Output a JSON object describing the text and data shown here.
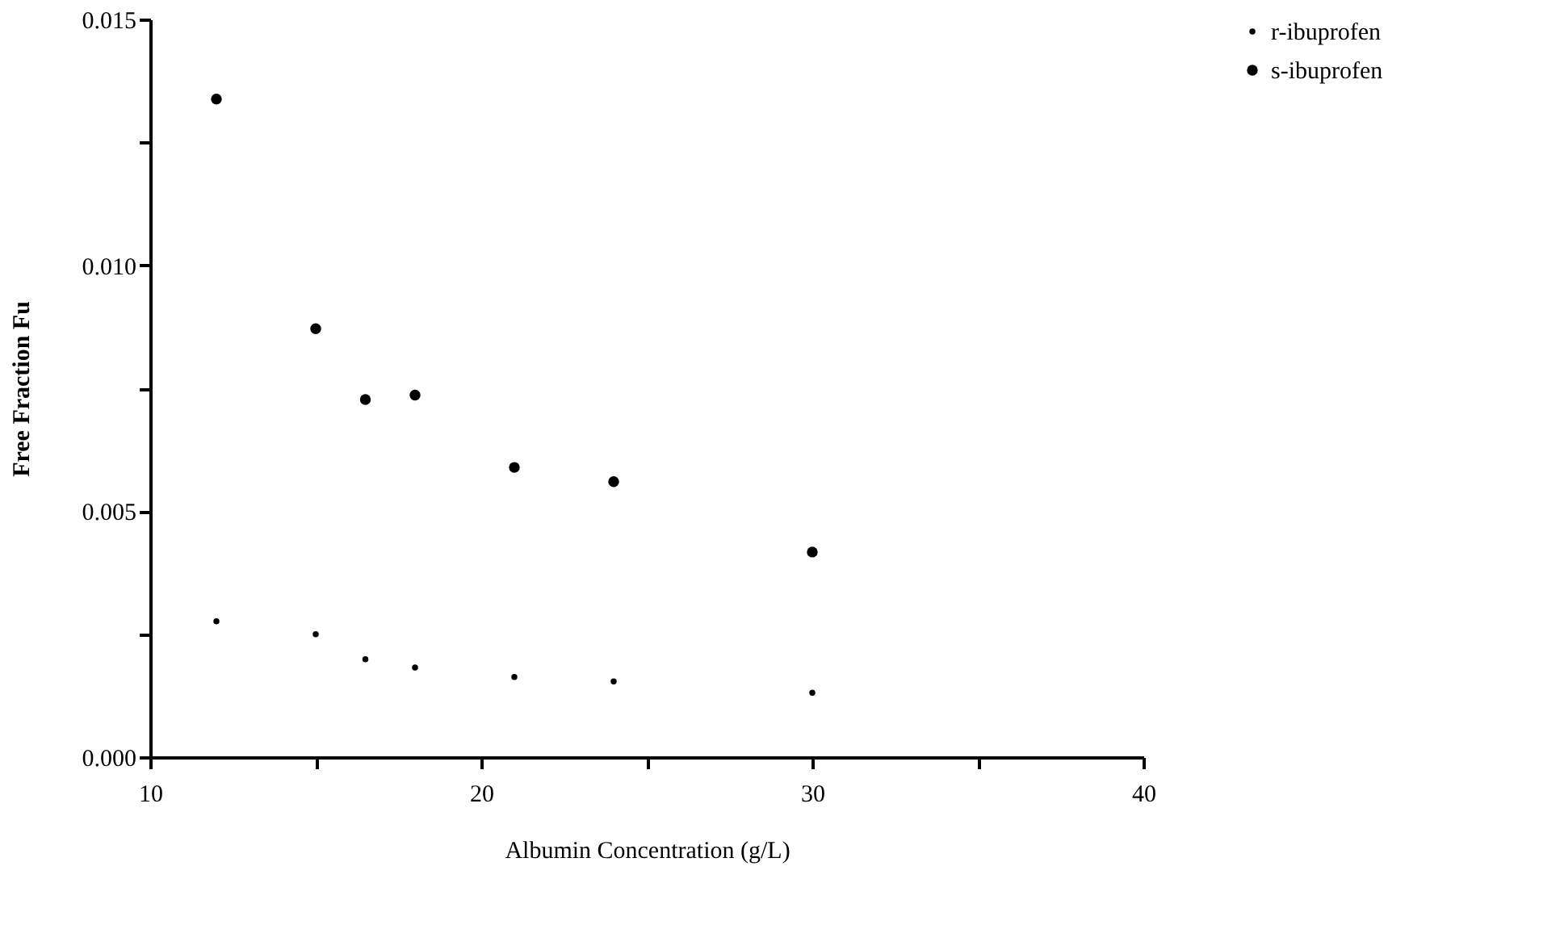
{
  "chart_data": {
    "type": "scatter",
    "xlabel": "Albumin Concentration  (g/L)",
    "ylabel": "Free Fraction  Fu",
    "x": [
      12,
      15,
      16.5,
      18,
      21,
      24,
      30
    ],
    "series": [
      {
        "name": "r-ibuprofen",
        "color": "#000000",
        "values": [
          0.00276,
          0.0025,
          0.00199,
          0.00182,
          0.00163,
          0.00154,
          0.00131
        ]
      },
      {
        "name": "s-ibuprofen",
        "color": "#000000",
        "values": [
          0.01338,
          0.00871,
          0.00727,
          0.00736,
          0.00589,
          0.0056,
          0.00417
        ]
      }
    ],
    "xlim": [
      10,
      40
    ],
    "xticks": [
      10,
      {
        "value": 15,
        "label": null
      },
      20,
      {
        "value": 25,
        "label": null
      },
      30,
      {
        "value": 35,
        "label": null
      },
      40
    ],
    "ylim": [
      0,
      0.015
    ],
    "yticks": [
      {
        "value": 0,
        "label": "0.000"
      },
      {
        "value": 0.0025,
        "label": null
      },
      {
        "value": 0.005,
        "label": "0.005"
      },
      {
        "value": 0.0075,
        "label": null
      },
      {
        "value": 0.01,
        "label": "0.010"
      },
      {
        "value": 0.0125,
        "label": null
      },
      {
        "value": 0.015,
        "label": "0.015"
      }
    ],
    "marker": "circle",
    "legend": "right",
    "grid": false
  }
}
